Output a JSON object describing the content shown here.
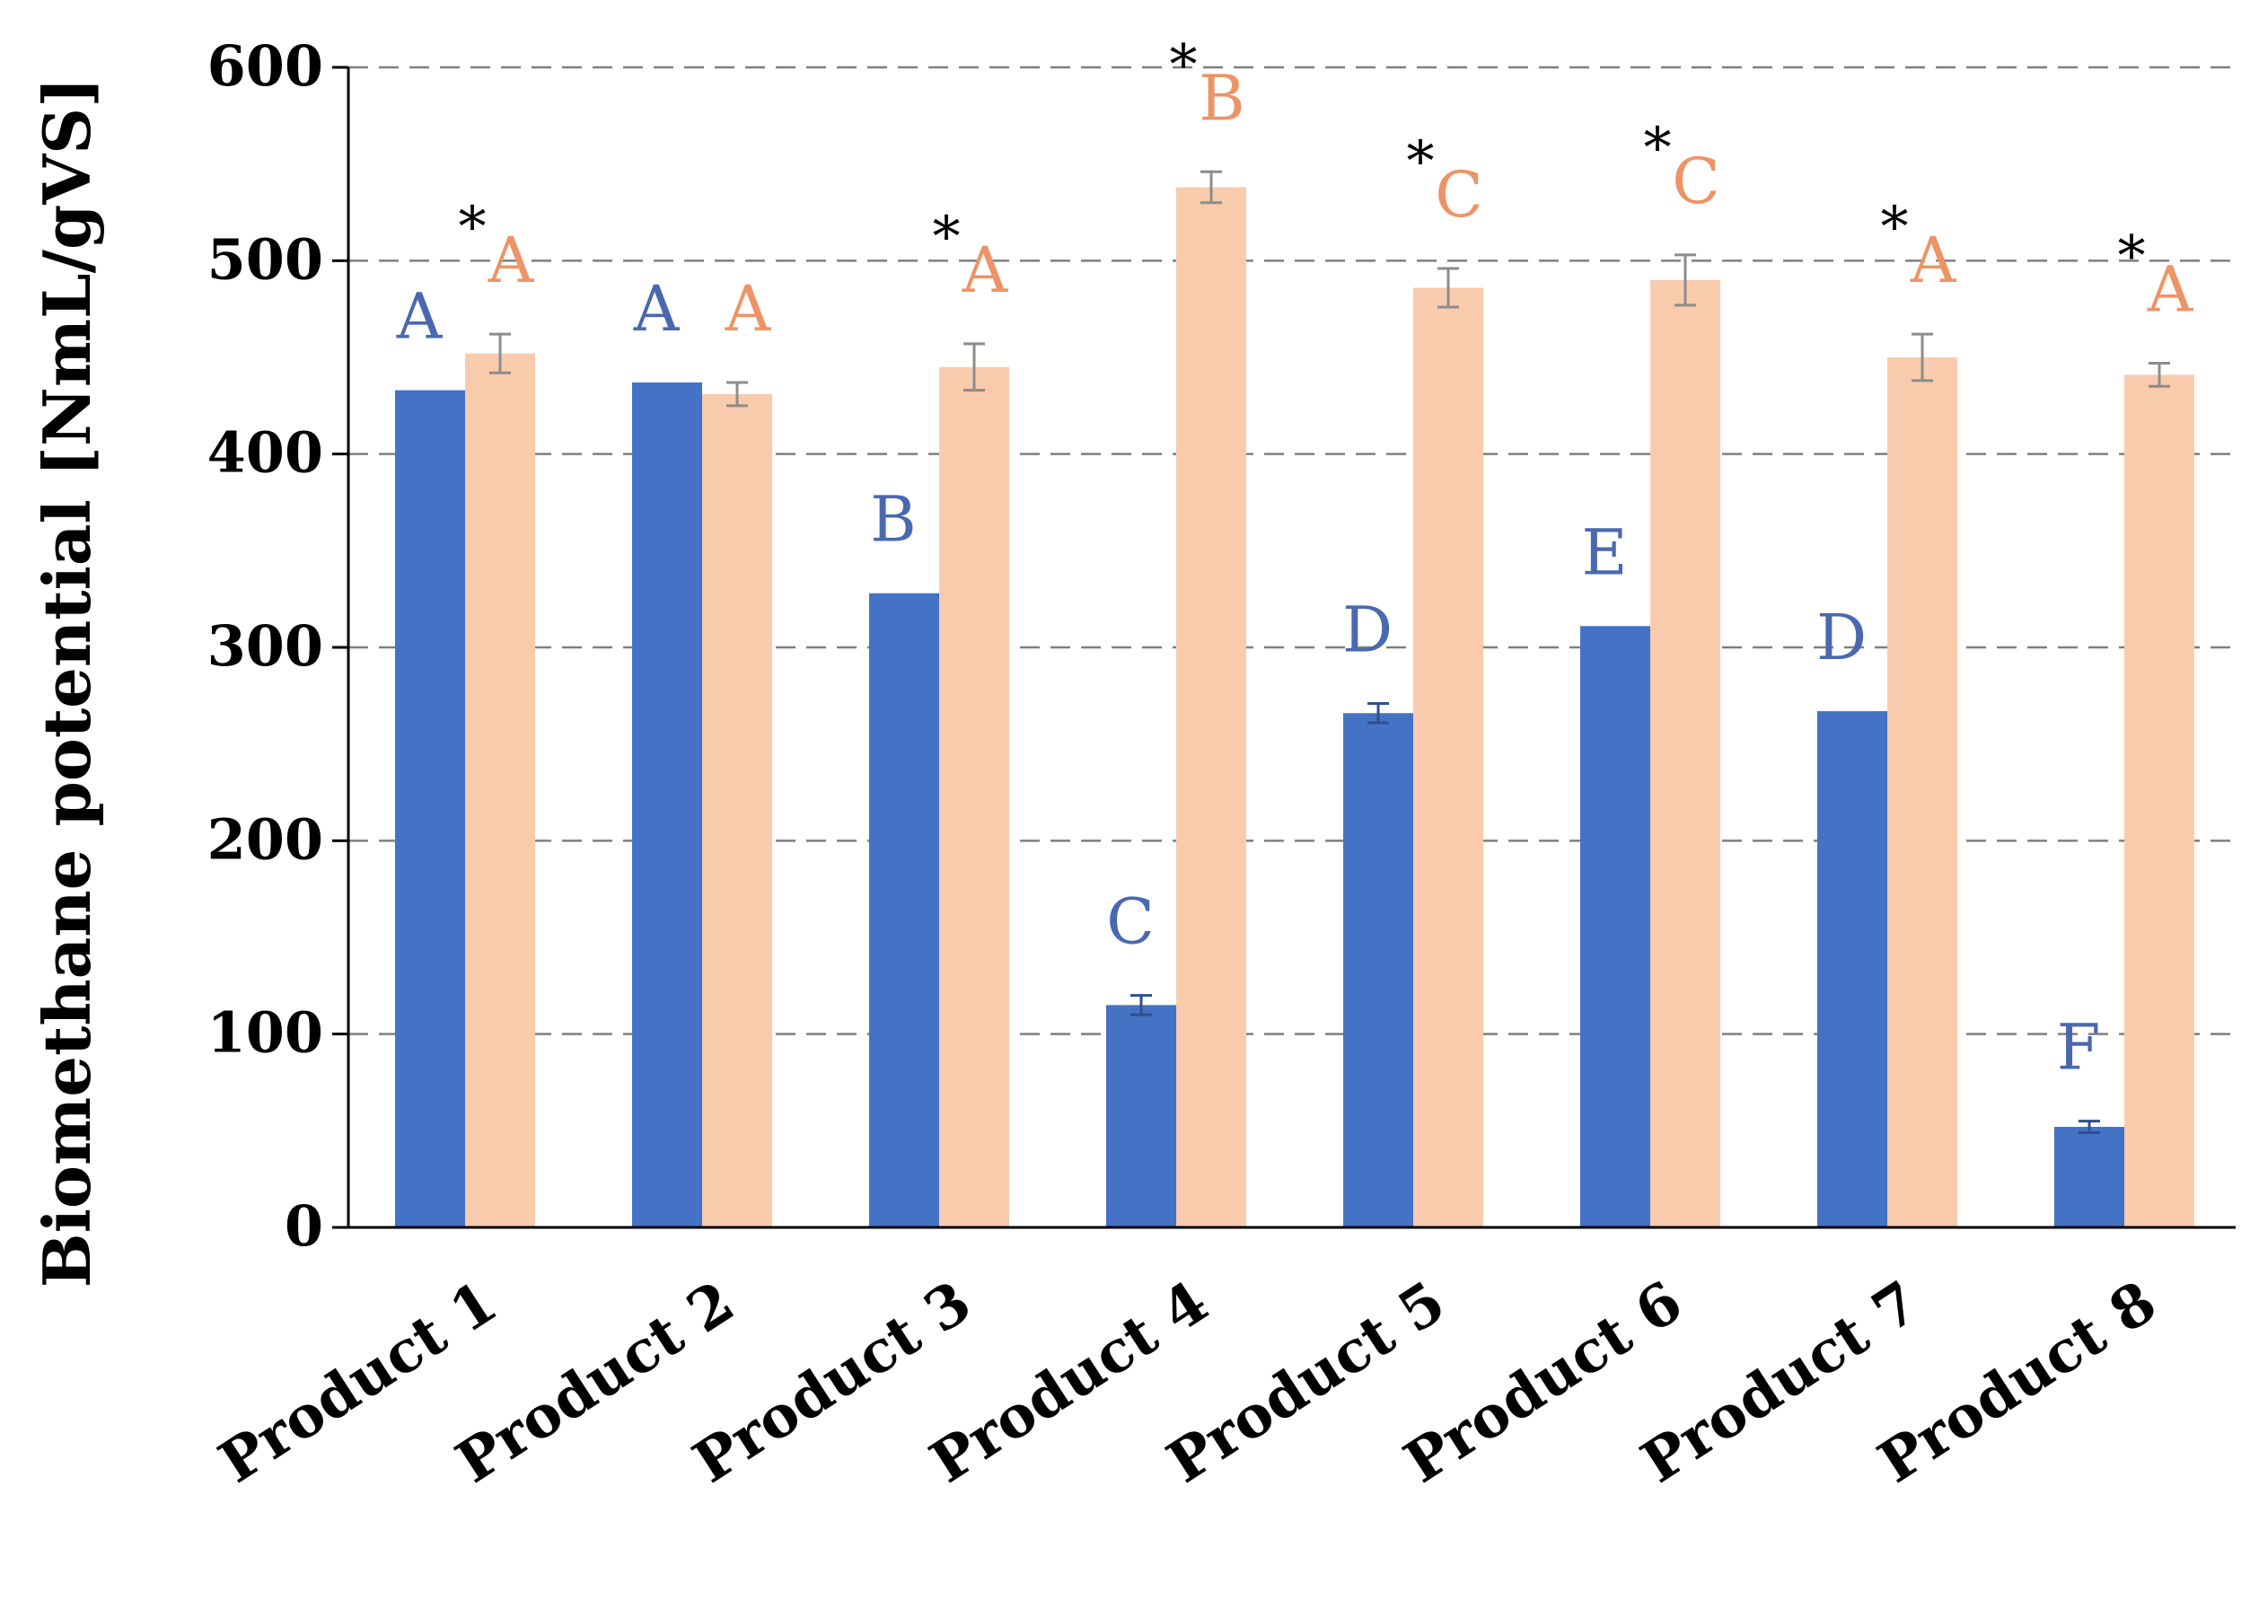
{
  "chart_data": {
    "type": "bar",
    "title": "",
    "xlabel": "",
    "ylabel": "Biomethane potential  [NmL/gVS]",
    "ylim": [
      0,
      600
    ],
    "yticks": [
      0,
      100,
      200,
      300,
      400,
      500,
      600
    ],
    "grid": "horizontal dashed",
    "legend": "none",
    "categories": [
      "Product 1",
      "Product 2",
      "Product 3",
      "Product 4",
      "Product 5",
      "Product 6",
      "Product 7",
      "Product 8"
    ],
    "series": [
      {
        "color": "#4472c4",
        "values": [
          433,
          437,
          328,
          115,
          266,
          311,
          267,
          52
        ],
        "errors": [
          0,
          0,
          0,
          5,
          5,
          0,
          0,
          3
        ],
        "letters": [
          "A",
          "A",
          "B",
          "C",
          "D",
          "E",
          "D",
          "F"
        ],
        "letter_color": "#4a68b0"
      },
      {
        "color": "#f8cbad",
        "values": [
          452,
          431,
          445,
          538,
          486,
          490,
          450,
          441
        ],
        "errors": [
          10,
          6,
          12,
          8,
          10,
          13,
          12,
          6
        ],
        "letters": [
          "A",
          "A",
          "A",
          "B",
          "C",
          "C",
          "A",
          "A"
        ],
        "letter_color": "#ec9466"
      }
    ],
    "significance": [
      "*",
      "",
      "*",
      "*",
      "*",
      "*",
      "*",
      "*"
    ]
  }
}
